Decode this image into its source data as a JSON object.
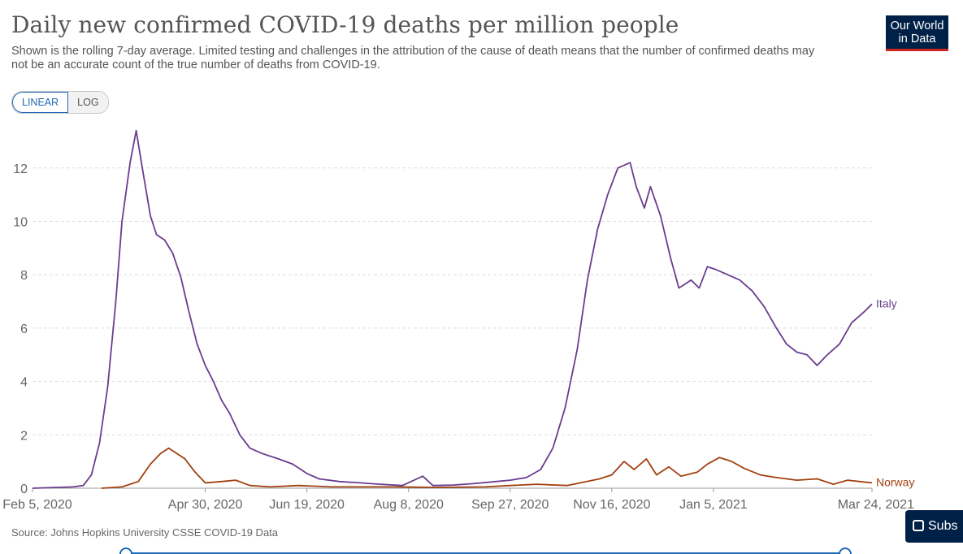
{
  "header": {
    "title": "Daily new confirmed COVID-19 deaths per million people",
    "subtitle": "Shown is the rolling 7-day average. Limited testing and challenges in the attribution of the cause of death means that the number of confirmed deaths may not be an accurate count of the true number of deaths from COVID-19.",
    "logo_line1": "Our World",
    "logo_line2": "in Data"
  },
  "scale_toggle": {
    "linear_label": "LINEAR",
    "log_label": "LOG",
    "selected": "LINEAR"
  },
  "footer": {
    "source": "Source: Johns Hopkins University CSSE COVID-19 Data"
  },
  "subscribe_label": "Subs",
  "colors": {
    "italy": "#6a3d8f",
    "norway": "#a2400f",
    "grid": "#dddddd",
    "accent": "#1d6ab6",
    "logo_bg": "#002147"
  },
  "chart_data": {
    "type": "line",
    "x_unit": "date",
    "y_label": "",
    "xlim": [
      "2020-02-05",
      "2021-03-24"
    ],
    "ylim": [
      0,
      13.5
    ],
    "y_ticks": [
      0,
      2,
      4,
      6,
      8,
      10,
      12
    ],
    "x_ticks": [
      {
        "date": "2020-02-05",
        "label": "Feb 5, 2020"
      },
      {
        "date": "2020-04-30",
        "label": "Apr 30, 2020"
      },
      {
        "date": "2020-06-19",
        "label": "Jun 19, 2020"
      },
      {
        "date": "2020-08-08",
        "label": "Aug 8, 2020"
      },
      {
        "date": "2020-09-27",
        "label": "Sep 27, 2020"
      },
      {
        "date": "2020-11-16",
        "label": "Nov 16, 2020"
      },
      {
        "date": "2021-01-05",
        "label": "Jan 5, 2021"
      },
      {
        "date": "2021-03-24",
        "label": "Mar 24, 2021"
      }
    ],
    "grid": "horizontal-dashed",
    "legend": "inline-right",
    "series": [
      {
        "name": "Italy",
        "color": "#6a3d8f",
        "points": [
          [
            "2020-02-05",
            0
          ],
          [
            "2020-02-25",
            0.05
          ],
          [
            "2020-03-01",
            0.1
          ],
          [
            "2020-03-05",
            0.5
          ],
          [
            "2020-03-09",
            1.7
          ],
          [
            "2020-03-13",
            3.8
          ],
          [
            "2020-03-17",
            7.0
          ],
          [
            "2020-03-20",
            10.0
          ],
          [
            "2020-03-24",
            12.2
          ],
          [
            "2020-03-27",
            13.4
          ],
          [
            "2020-03-30",
            12.0
          ],
          [
            "2020-04-03",
            10.2
          ],
          [
            "2020-04-06",
            9.5
          ],
          [
            "2020-04-10",
            9.3
          ],
          [
            "2020-04-14",
            8.8
          ],
          [
            "2020-04-18",
            7.9
          ],
          [
            "2020-04-22",
            6.6
          ],
          [
            "2020-04-26",
            5.4
          ],
          [
            "2020-04-30",
            4.6
          ],
          [
            "2020-05-04",
            4.0
          ],
          [
            "2020-05-08",
            3.3
          ],
          [
            "2020-05-12",
            2.8
          ],
          [
            "2020-05-17",
            2.0
          ],
          [
            "2020-05-22",
            1.5
          ],
          [
            "2020-05-28",
            1.3
          ],
          [
            "2020-06-05",
            1.1
          ],
          [
            "2020-06-12",
            0.9
          ],
          [
            "2020-06-19",
            0.55
          ],
          [
            "2020-06-25",
            0.35
          ],
          [
            "2020-07-05",
            0.25
          ],
          [
            "2020-07-15",
            0.2
          ],
          [
            "2020-07-25",
            0.15
          ],
          [
            "2020-08-05",
            0.1
          ],
          [
            "2020-08-15",
            0.45
          ],
          [
            "2020-08-20",
            0.1
          ],
          [
            "2020-08-30",
            0.12
          ],
          [
            "2020-09-10",
            0.18
          ],
          [
            "2020-09-20",
            0.25
          ],
          [
            "2020-09-27",
            0.3
          ],
          [
            "2020-10-05",
            0.4
          ],
          [
            "2020-10-12",
            0.7
          ],
          [
            "2020-10-18",
            1.5
          ],
          [
            "2020-10-24",
            3.0
          ],
          [
            "2020-10-30",
            5.2
          ],
          [
            "2020-11-04",
            7.8
          ],
          [
            "2020-11-09",
            9.7
          ],
          [
            "2020-11-14",
            11.0
          ],
          [
            "2020-11-19",
            12.0
          ],
          [
            "2020-11-25",
            12.2
          ],
          [
            "2020-11-28",
            11.3
          ],
          [
            "2020-12-02",
            10.5
          ],
          [
            "2020-12-05",
            11.3
          ],
          [
            "2020-12-10",
            10.2
          ],
          [
            "2020-12-15",
            8.6
          ],
          [
            "2020-12-19",
            7.5
          ],
          [
            "2020-12-25",
            7.8
          ],
          [
            "2020-12-29",
            7.5
          ],
          [
            "2021-01-02",
            8.3
          ],
          [
            "2021-01-06",
            8.2
          ],
          [
            "2021-01-12",
            8.0
          ],
          [
            "2021-01-18",
            7.8
          ],
          [
            "2021-01-24",
            7.4
          ],
          [
            "2021-01-30",
            6.8
          ],
          [
            "2021-02-05",
            6.0
          ],
          [
            "2021-02-10",
            5.4
          ],
          [
            "2021-02-15",
            5.1
          ],
          [
            "2021-02-20",
            5.0
          ],
          [
            "2021-02-25",
            4.6
          ],
          [
            "2021-03-02",
            5.0
          ],
          [
            "2021-03-08",
            5.4
          ],
          [
            "2021-03-14",
            6.2
          ],
          [
            "2021-03-20",
            6.6
          ],
          [
            "2021-03-24",
            6.9
          ]
        ]
      },
      {
        "name": "Norway",
        "color": "#a2400f",
        "points": [
          [
            "2020-03-10",
            0
          ],
          [
            "2020-03-20",
            0.05
          ],
          [
            "2020-03-28",
            0.25
          ],
          [
            "2020-04-03",
            0.9
          ],
          [
            "2020-04-08",
            1.3
          ],
          [
            "2020-04-12",
            1.5
          ],
          [
            "2020-04-16",
            1.3
          ],
          [
            "2020-04-20",
            1.1
          ],
          [
            "2020-04-25",
            0.6
          ],
          [
            "2020-04-30",
            0.2
          ],
          [
            "2020-05-08",
            0.25
          ],
          [
            "2020-05-15",
            0.3
          ],
          [
            "2020-05-22",
            0.1
          ],
          [
            "2020-06-01",
            0.05
          ],
          [
            "2020-06-15",
            0.1
          ],
          [
            "2020-07-01",
            0.05
          ],
          [
            "2020-08-01",
            0.05
          ],
          [
            "2020-08-20",
            0.03
          ],
          [
            "2020-09-15",
            0.05
          ],
          [
            "2020-09-27",
            0.1
          ],
          [
            "2020-10-10",
            0.15
          ],
          [
            "2020-10-25",
            0.1
          ],
          [
            "2020-11-10",
            0.35
          ],
          [
            "2020-11-16",
            0.5
          ],
          [
            "2020-11-22",
            1.0
          ],
          [
            "2020-11-27",
            0.7
          ],
          [
            "2020-12-03",
            1.1
          ],
          [
            "2020-12-08",
            0.5
          ],
          [
            "2020-12-14",
            0.8
          ],
          [
            "2020-12-20",
            0.45
          ],
          [
            "2020-12-28",
            0.6
          ],
          [
            "2021-01-02",
            0.9
          ],
          [
            "2021-01-08",
            1.15
          ],
          [
            "2021-01-14",
            1.0
          ],
          [
            "2021-01-20",
            0.75
          ],
          [
            "2021-01-28",
            0.5
          ],
          [
            "2021-02-05",
            0.4
          ],
          [
            "2021-02-15",
            0.3
          ],
          [
            "2021-02-25",
            0.35
          ],
          [
            "2021-03-05",
            0.15
          ],
          [
            "2021-03-12",
            0.3
          ],
          [
            "2021-03-18",
            0.25
          ],
          [
            "2021-03-24",
            0.2
          ]
        ]
      }
    ]
  }
}
